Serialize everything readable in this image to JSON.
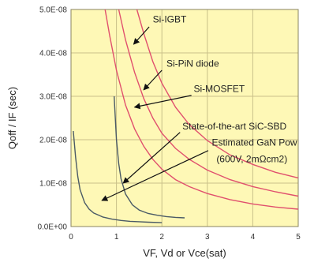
{
  "chart_data": {
    "type": "line",
    "title": "",
    "xlabel": "VF, Vd or Vce(sat)",
    "ylabel": "Qoff / IF (sec)",
    "xlim": [
      0,
      5
    ],
    "ylim": [
      0,
      5e-08
    ],
    "x_ticks": [
      0,
      1,
      2,
      3,
      4,
      5
    ],
    "x_tick_labels": [
      "0",
      "1",
      "2",
      "3",
      "4",
      "5"
    ],
    "y_ticks": [
      0,
      1e-08,
      2e-08,
      3e-08,
      4e-08,
      5e-08
    ],
    "y_tick_labels": [
      "0.0E+00",
      "1.0E-08",
      "2.0E-08",
      "3.0E-08",
      "4.0E-08",
      "5.0E-08"
    ],
    "grid": "both",
    "plot_background": "#fef8b6",
    "grid_color": "#c9c089",
    "series": [
      {
        "key": "igbt-1",
        "color": "#e0506e",
        "x": [
          1.45,
          1.6,
          1.8,
          2.0,
          2.3,
          2.6,
          3.0,
          3.5,
          4.0,
          4.5,
          5.0
        ],
        "y": [
          5e-08,
          4.45e-08,
          3.8e-08,
          3.3e-08,
          2.75e-08,
          2.35e-08,
          1.98e-08,
          1.65e-08,
          1.43e-08,
          1.25e-08,
          1.12e-08
        ]
      },
      {
        "key": "igbt-2",
        "color": "#e0506e",
        "x": [
          1.05,
          1.2,
          1.4,
          1.6,
          1.8,
          2.0,
          2.3,
          2.6,
          3.0,
          3.5,
          4.0,
          4.5,
          5.0
        ],
        "y": [
          5e-08,
          4.3e-08,
          3.55e-08,
          2.95e-08,
          2.5e-08,
          2.15e-08,
          1.8e-08,
          1.55e-08,
          1.3e-08,
          1.08e-08,
          9.2e-09,
          8e-09,
          7e-09
        ]
      },
      {
        "key": "pin-diode",
        "color": "#e0506e",
        "x": [
          0.75,
          0.85,
          1.0,
          1.2,
          1.4,
          1.6,
          1.8,
          2.0,
          2.3,
          2.6,
          3.0,
          3.5,
          4.0,
          4.5,
          5.0
        ],
        "y": [
          5e-08,
          4.4e-08,
          3.6e-08,
          2.8e-08,
          2.25e-08,
          1.85e-08,
          1.55e-08,
          1.32e-08,
          1.08e-08,
          9.2e-09,
          7.6e-09,
          6.2e-09,
          5.2e-09,
          4.5e-09,
          4e-09
        ]
      },
      {
        "key": "sic-sbd",
        "color": "#4a5a66",
        "x": [
          0.95,
          1.0,
          1.05,
          1.1,
          1.2,
          1.35,
          1.5,
          1.7,
          1.9,
          2.1,
          2.3,
          2.5
        ],
        "y": [
          3e-08,
          2e-08,
          1.45e-08,
          1.1e-08,
          7.5e-09,
          5e-09,
          3.8e-09,
          3e-09,
          2.6e-09,
          2.3e-09,
          2.1e-09,
          2e-09
        ]
      },
      {
        "key": "gan",
        "color": "#4a5a66",
        "x": [
          0.05,
          0.1,
          0.15,
          0.2,
          0.3,
          0.4,
          0.5,
          0.7,
          0.9,
          1.1,
          1.3,
          1.5,
          1.7,
          2.0
        ],
        "y": [
          2.2e-08,
          1.6e-08,
          1.15e-08,
          8.5e-09,
          5.5e-09,
          4e-09,
          3.1e-09,
          2.2e-09,
          1.7e-09,
          1.4e-09,
          1.2e-09,
          1.1e-09,
          1e-09,
          9e-10
        ]
      }
    ],
    "annotations": [
      {
        "key": "si-igbt",
        "text": "Si-IGBT",
        "label_x": 1.8,
        "label_y": 4.7e-08,
        "arrow_from": [
          1.72,
          4.6e-08
        ],
        "arrow_to": [
          1.38,
          4.2e-08
        ]
      },
      {
        "key": "si-pin",
        "text": "Si-PiN diode",
        "label_x": 2.1,
        "label_y": 3.68e-08,
        "arrow_from": [
          2.0,
          3.6e-08
        ],
        "arrow_to": [
          1.6,
          3.15e-08
        ]
      },
      {
        "key": "si-mosfet",
        "text": "Si-MOSFET",
        "label_x": 2.7,
        "label_y": 3.1e-08,
        "arrow_from": [
          2.65,
          3.02e-08
        ],
        "arrow_to": [
          1.4,
          2.75e-08
        ]
      },
      {
        "key": "sic-sbd",
        "text": "State-of-the-art SiC-SBD",
        "label_x": 2.45,
        "label_y": 2.24e-08,
        "arrow_from": [
          2.4,
          2.17e-08
        ],
        "arrow_to": [
          1.15,
          1e-08
        ]
      },
      {
        "key": "gan-line1",
        "text": "Estimated GaN Pow",
        "label_x": 3.1,
        "label_y": 1.86e-08,
        "arrow_from": [
          3.02,
          1.75e-08
        ],
        "arrow_to": [
          0.68,
          6e-09
        ]
      },
      {
        "key": "gan-line2",
        "text": "(600V, 2mΩcm2)",
        "label_x": 3.2,
        "label_y": 1.48e-08
      }
    ]
  }
}
